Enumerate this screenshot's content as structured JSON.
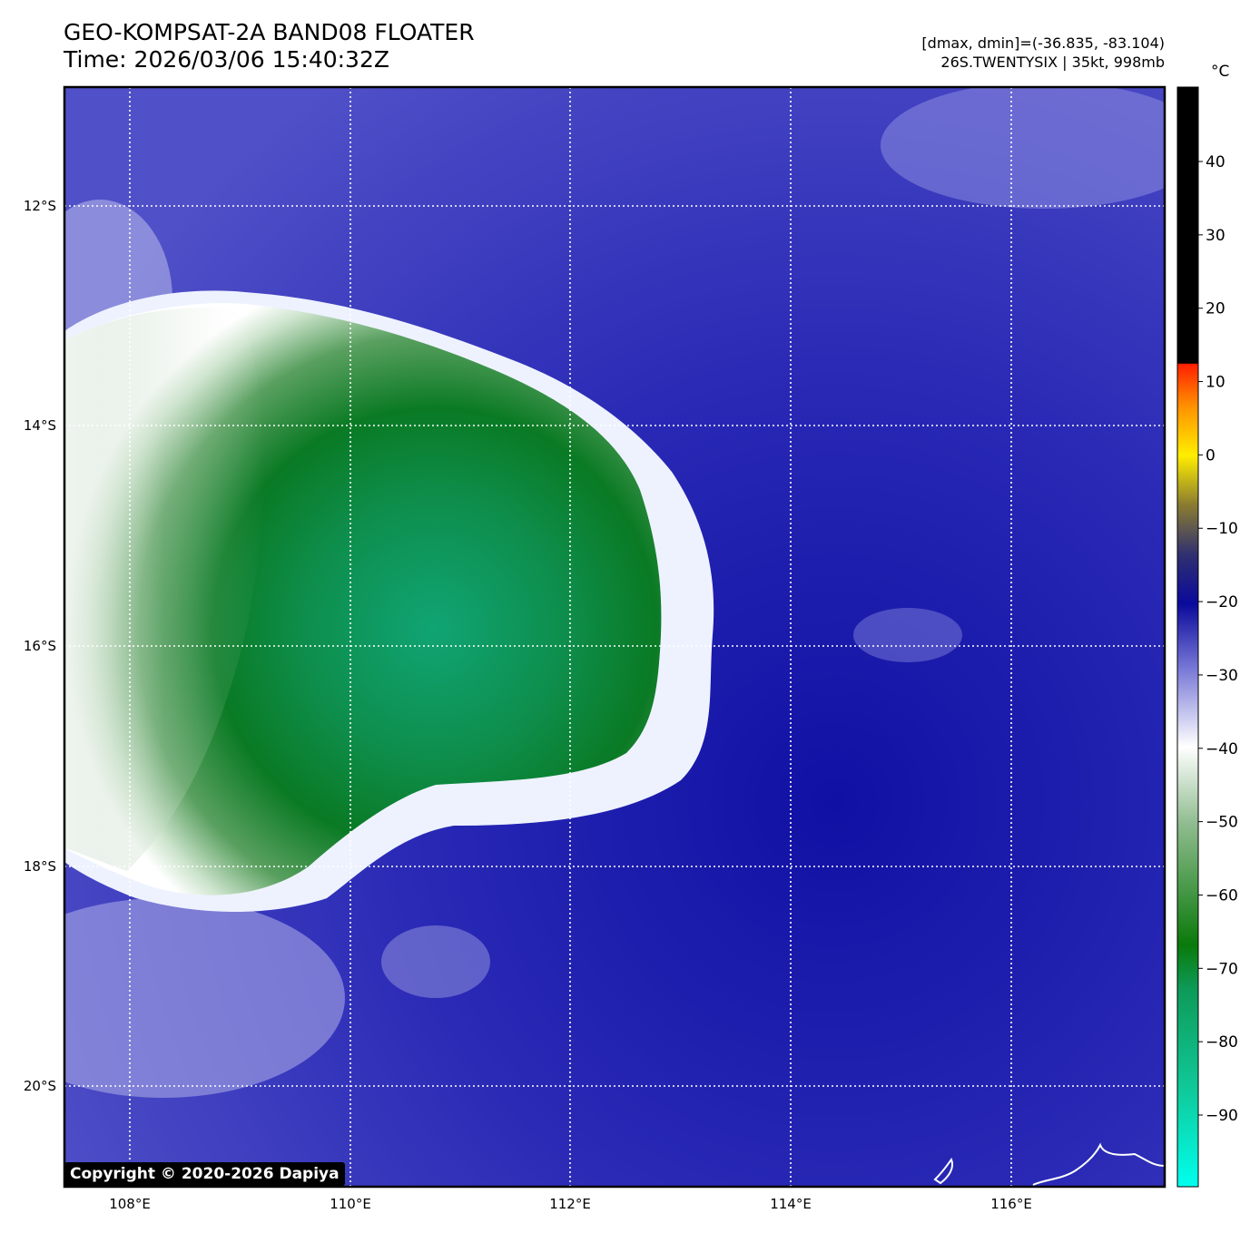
{
  "header": {
    "title": "GEO-KOMPSAT-2A BAND08 FLOATER",
    "time": "Time: 2026/03/06 15:40:32Z",
    "range_text": "[dmax, dmin]=(-36.835, -83.104)",
    "storm_text": "26S.TWENTYSIX | 35kt, 998mb"
  },
  "map": {
    "lon_labels": [
      "108°E",
      "110°E",
      "112°E",
      "114°E",
      "116°E"
    ],
    "lat_labels": [
      "12°S",
      "14°S",
      "16°S",
      "18°S",
      "20°S"
    ],
    "grid_style": "dotted white",
    "projection": "satellite water-vapor floater (band 08)"
  },
  "colorbar": {
    "unit": "°C",
    "tick_labels": [
      "40",
      "30",
      "20",
      "10",
      "0",
      "−10",
      "−20",
      "−30",
      "−40",
      "−50",
      "−60",
      "−70",
      "−80",
      "−90"
    ],
    "colors": {
      "warm_black": "#000000",
      "red": "#ff2000",
      "yellow": "#ffee00",
      "olive": "#8a7c30",
      "dark_blue": "#0a0a9c",
      "light_blue": "#7a7ad8",
      "white": "#ffffff",
      "light_green": "#8fbc8f",
      "green": "#0a7a0a",
      "teal": "#10b888",
      "cyan": "#00ffee"
    }
  },
  "footer": {
    "copyright": "Copyright © 2020-2026 Dapiya"
  }
}
